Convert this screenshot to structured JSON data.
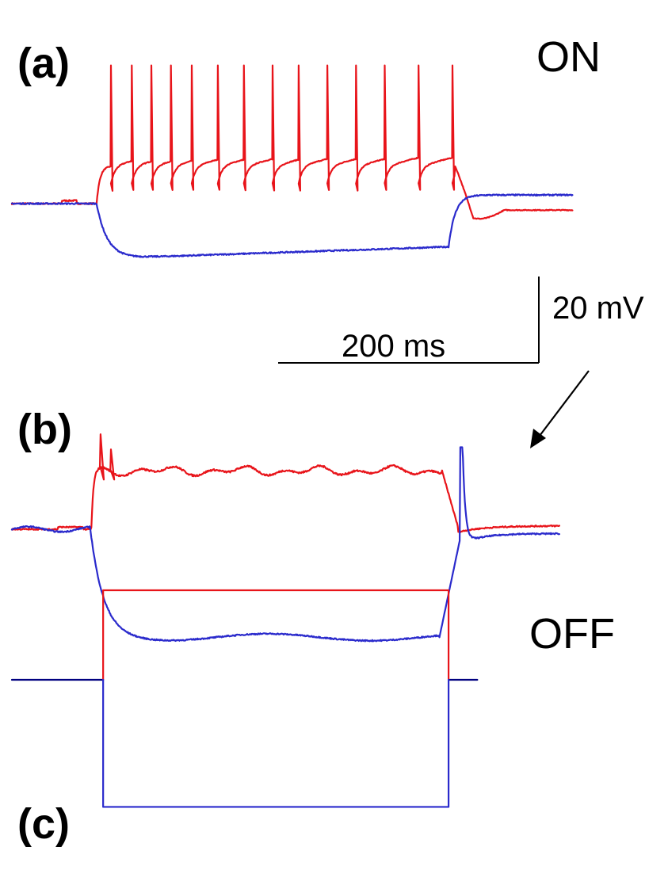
{
  "chart_data": [
    {
      "type": "line",
      "panel_label": "(a)",
      "annotation": "ON",
      "time_unit": "ms",
      "voltage_unit": "mV",
      "x_range": [
        0,
        430
      ],
      "series": [
        {
          "color": "#e8141a",
          "baseline_mV": 0,
          "step_level_mV": 8.7,
          "rebound_mV": -1.5,
          "spike_peak_mV": 32,
          "spike_times_ms": [
            76,
            92,
            107,
            122,
            138,
            158,
            178,
            200,
            220,
            242,
            264,
            286,
            312,
            338
          ],
          "events": [
            {
              "t": 42,
              "v": 0.5
            },
            {
              "t": 65,
              "v": 0
            },
            {
              "t": 70,
              "v": 8.5
            },
            {
              "t": 340,
              "v": 9.2
            },
            {
              "t": 350,
              "v": -1
            },
            {
              "t": 430,
              "v": -1.7
            }
          ]
        },
        {
          "color": "#2a2acc",
          "baseline_mV": 0,
          "step_level_mV": -12.5,
          "rebound_mV": 2,
          "events": [
            {
              "t": 65,
              "v": 0
            },
            {
              "t": 90,
              "v": -12.5
            },
            {
              "t": 335,
              "v": -10
            },
            {
              "t": 350,
              "v": 0.8
            },
            {
              "t": 430,
              "v": 1.7
            }
          ]
        }
      ]
    },
    {
      "type": "line",
      "panel_label": "(b)",
      "annotation": "OFF",
      "arrow_target": "rebound spike (blue)",
      "time_unit": "ms",
      "voltage_unit": "mV",
      "x_range": [
        0,
        430
      ],
      "series": [
        {
          "color": "#e8141a",
          "baseline_mV": 0,
          "step_level_mV": 13.5,
          "transient_peaks_mV": [
            22,
            18.5
          ],
          "rebound_mV": 0.8,
          "events": [
            {
              "t": 60,
              "v": 0.5
            },
            {
              "t": 65,
              "v": 13.5
            },
            {
              "t": 330,
              "v": 13.8
            },
            {
              "t": 350,
              "v": 0
            },
            {
              "t": 420,
              "v": 1
            }
          ]
        },
        {
          "color": "#2a2acc",
          "baseline_mV": 0,
          "step_level_mV": -25,
          "rebound_spike_peak_mV": 19,
          "rebound_mV": -1,
          "events": [
            {
              "t": 60,
              "v": 0.7
            },
            {
              "t": 90,
              "v": -24
            },
            {
              "t": 328,
              "v": -25
            },
            {
              "t": 340,
              "v": -4
            },
            {
              "t": 346,
              "v": 19
            },
            {
              "t": 420,
              "v": -0.5
            }
          ]
        }
      ]
    },
    {
      "type": "line",
      "panel_label": "(c)",
      "description_level": "current step protocol",
      "x_range": [
        0,
        430
      ],
      "step_on_ms": 70,
      "step_off_ms": 335,
      "series": [
        {
          "color": "#e8141a",
          "direction": "depolarizing",
          "level": 1
        },
        {
          "color": "#2a2acc",
          "direction": "hyperpolarizing",
          "level": -1
        },
        {
          "color": "#000080",
          "direction": "holding",
          "level": 0
        }
      ]
    }
  ],
  "scale_bar": {
    "time_label": "200 ms",
    "time_ms": 200,
    "voltage_label": "20 mV",
    "voltage_mV": 20
  },
  "colors": {
    "depolarizing": "#e8141a",
    "hyperpolarizing": "#2a2acc",
    "holding": "#000080",
    "text": "#000000"
  }
}
